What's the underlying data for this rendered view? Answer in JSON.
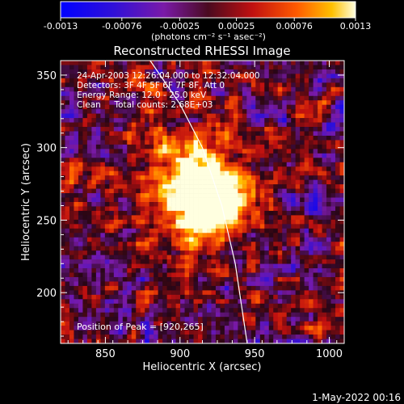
{
  "chart_data": {
    "type": "heatmap",
    "title": "Reconstructed RHESSI Image",
    "xlabel": "Heliocentric X (arcsec)",
    "ylabel": "Heliocentric Y (arcsec)",
    "xlim": [
      820,
      1010
    ],
    "ylim": [
      165,
      360
    ],
    "x_ticks": [
      850,
      900,
      950,
      1000
    ],
    "y_ticks": [
      200,
      250,
      300,
      350
    ],
    "colorbar": {
      "min": -0.0013,
      "max": 0.0013,
      "ticks": [
        "-0.0013",
        "-0.00076",
        "-0.00025",
        "0.00025",
        "0.00076",
        "0.0013"
      ],
      "unit_label": "(photons cm⁻² s⁻¹ asec⁻²)"
    },
    "info_lines": [
      "24-Apr-2003 12:26:04.000 to 12:32:04.000",
      "Detectors: 3F 4F 5F 6F 7F 8F, Att 0",
      "Energy Range: 12.0 - 25.0 keV",
      "Clean     Total counts: 2.68E+03"
    ],
    "peak_label": "Position of Peak = [920,265]",
    "peak_position": [
      920,
      265
    ],
    "limb_curve": [
      [
        880,
        360
      ],
      [
        900,
        330
      ],
      [
        915,
        300
      ],
      [
        928,
        260
      ],
      [
        937,
        220
      ],
      [
        945,
        165
      ]
    ],
    "timestamp": "1-May-2022 00:16"
  }
}
